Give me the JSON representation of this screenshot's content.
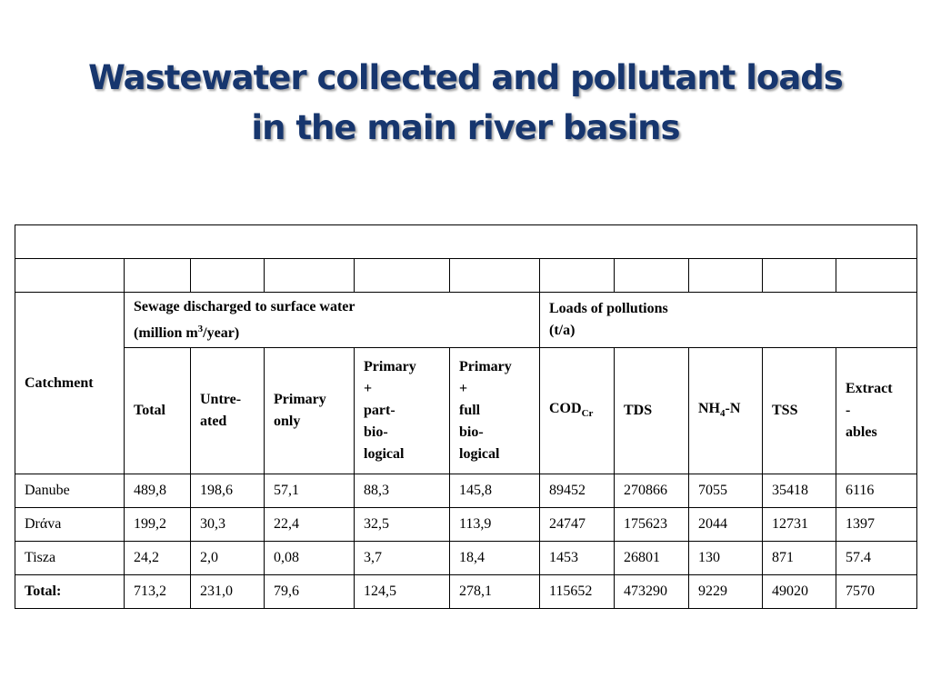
{
  "title": {
    "line1": "Wastewater collected and pollutant loads",
    "line2": "in the main river basins"
  },
  "header": {
    "catchment": "Catchment",
    "sewage_group": {
      "line1": "Sewage discharged to surface water",
      "line2_pre": "(million m",
      "line2_sup": "3",
      "line2_post": "/year)"
    },
    "loads_group": {
      "line1": "Loads of pollutions",
      "line2": "(t/a)"
    },
    "columns": {
      "total": "Total",
      "untreated": [
        "Untre-",
        "ated"
      ],
      "primary_only": [
        "Primary",
        "only"
      ],
      "primary_part": [
        "Primary",
        "+",
        "part-",
        "bio-",
        "logical"
      ],
      "primary_full": [
        "Primary",
        "+",
        "full",
        "bio-",
        "logical"
      ],
      "cod_main": "COD",
      "cod_sub": "Cr",
      "tds": "TDS",
      "nh4_pre": "NH",
      "nh4_sub": "4",
      "nh4_post": "-N",
      "tss": "TSS",
      "extractables": [
        "Extract",
        "-",
        "ables"
      ]
    }
  },
  "rows": [
    {
      "catchment": "Danube",
      "values": [
        "489,8",
        "198,6",
        "57,1",
        "88,3",
        "145,8",
        "89452",
        "270866",
        "7055",
        "35418",
        "6116"
      ]
    },
    {
      "catchment": "Drάva",
      "values": [
        "199,2",
        "30,3",
        "22,4",
        "32,5",
        "113,9",
        "24747",
        "175623",
        "2044",
        "12731",
        "1397"
      ]
    },
    {
      "catchment": "Tisza",
      "values": [
        "24,2",
        "2,0",
        "0,08",
        "3,7",
        "18,4",
        "1453",
        "26801",
        "130",
        "871",
        "57.4"
      ]
    },
    {
      "catchment": "Total:",
      "values": [
        "713,2",
        "231,0",
        "79,6",
        "124,5",
        "278,1",
        "115652",
        "473290",
        "9229",
        "49020",
        "7570"
      ]
    }
  ],
  "colors": {
    "title": "#17366e",
    "border": "#000000"
  }
}
